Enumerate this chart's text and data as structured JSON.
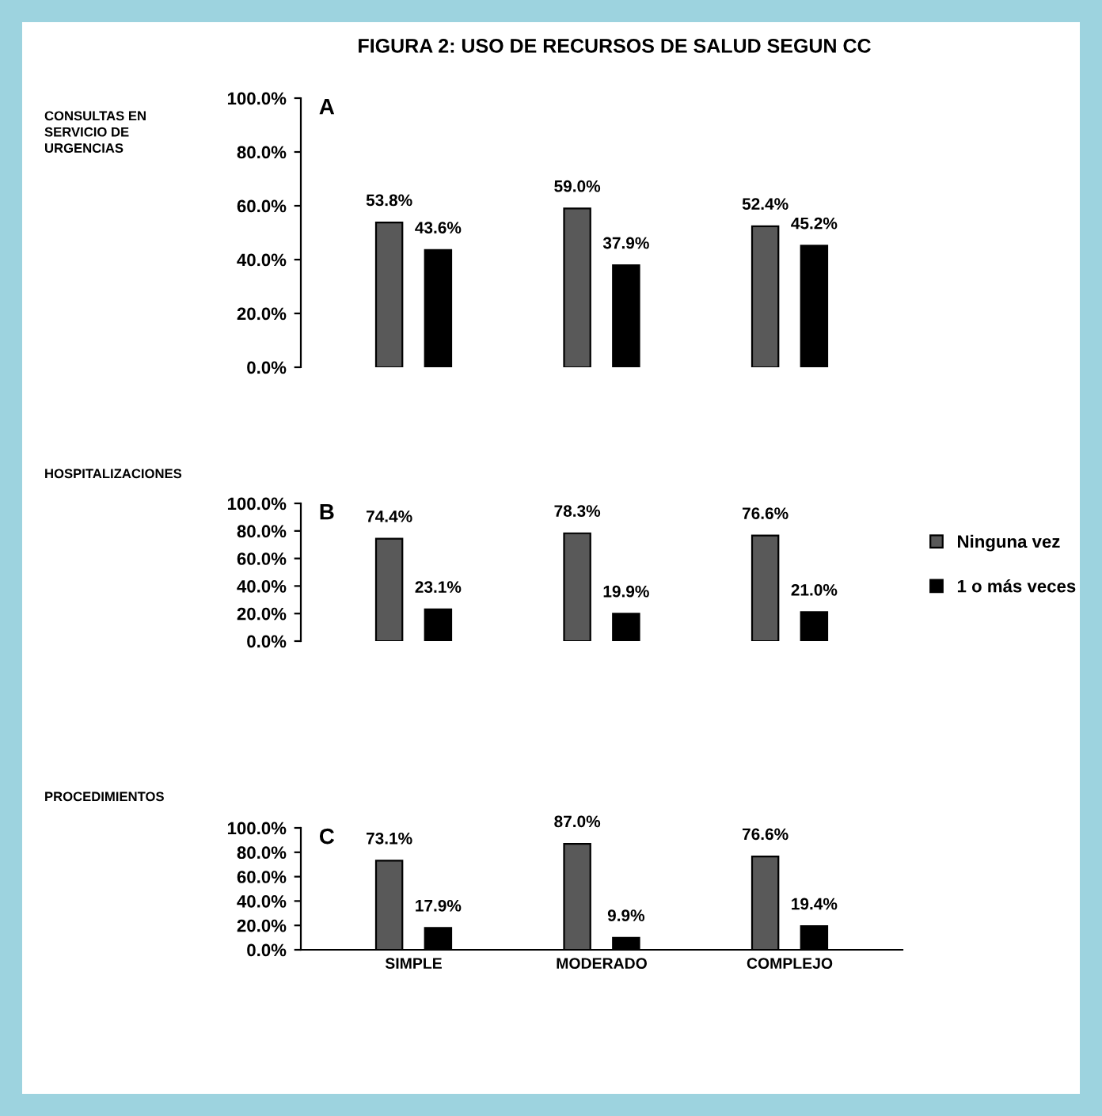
{
  "chart_data": [
    {
      "type": "bar",
      "title": "FIGURA 2: USO DE RECURSOS DE SALUD SEGUN CC",
      "ylabel": "CONSULTAS EN\nSERVICIO DE\nURGENCIAS",
      "annotations": [
        "A"
      ],
      "categories": [
        null,
        null,
        null
      ],
      "tick_labels": "y",
      "series": [
        {
          "color": "#595959",
          "values": [
            53.8,
            59.0,
            52.4
          ],
          "value_labels": [
            "53.8%",
            "59.0%",
            "52.4%"
          ]
        },
        {
          "color": "#000000",
          "values": [
            43.6,
            37.9,
            45.2
          ],
          "value_labels": [
            "43.6%",
            "37.9%",
            "45.2%"
          ]
        }
      ],
      "ylim": [
        0,
        100
      ],
      "yticks": [
        {
          "value": 0,
          "label": "0.0%"
        },
        {
          "value": 20,
          "label": "20.0%"
        },
        {
          "value": 40,
          "label": "40.0%"
        },
        {
          "value": 60,
          "label": "60.0%"
        },
        {
          "value": 80,
          "label": "80.0%"
        },
        {
          "value": 100,
          "label": "100.0%"
        }
      ]
    },
    {
      "type": "bar",
      "ylabel": "HOSPITALIZACIONES",
      "annotations": [
        "B"
      ],
      "categories": [
        null,
        null,
        null
      ],
      "tick_labels": "y",
      "legend": "right",
      "series": [
        {
          "name": "Ninguna vez",
          "color": "#595959",
          "values": [
            74.4,
            78.3,
            76.6
          ],
          "value_labels": [
            "74.4%",
            "78.3%",
            "76.6%"
          ]
        },
        {
          "name": "1 o más veces",
          "color": "#000000",
          "values": [
            23.1,
            19.9,
            21.0
          ],
          "value_labels": [
            "23.1%",
            "19.9%",
            "21.0%"
          ]
        }
      ],
      "ylim": [
        0,
        100
      ],
      "yticks": [
        {
          "value": 0,
          "label": "0.0%"
        },
        {
          "value": 20,
          "label": "20.0%"
        },
        {
          "value": 40,
          "label": "40.0%"
        },
        {
          "value": 60,
          "label": "60.0%"
        },
        {
          "value": 80,
          "label": "80.0%"
        },
        {
          "value": 100,
          "label": "100.0%"
        }
      ]
    },
    {
      "type": "bar",
      "ylabel": "PROCEDIMIENTOS",
      "annotations": [
        "C"
      ],
      "categories": [
        "SIMPLE",
        "MODERADO",
        "COMPLEJO"
      ],
      "series": [
        {
          "color": "#595959",
          "values": [
            73.1,
            87.0,
            76.6
          ],
          "value_labels": [
            "73.1%",
            "87.0%",
            "76.6%"
          ]
        },
        {
          "color": "#000000",
          "values": [
            17.9,
            9.9,
            19.4
          ],
          "value_labels": [
            "17.9%",
            "9.9%",
            "19.4%"
          ]
        }
      ],
      "ylim": [
        0,
        100
      ],
      "yticks": [
        {
          "value": 0,
          "label": "0.0%"
        },
        {
          "value": 20,
          "label": "20.0%"
        },
        {
          "value": 40,
          "label": "40.0%"
        },
        {
          "value": 60,
          "label": "60.0%"
        },
        {
          "value": 80,
          "label": "80.0%"
        },
        {
          "value": 100,
          "label": "100.0%"
        }
      ]
    }
  ]
}
